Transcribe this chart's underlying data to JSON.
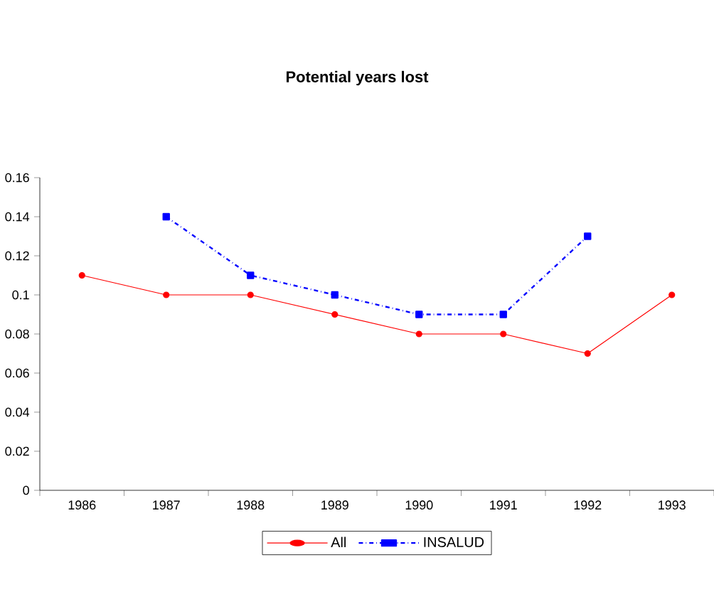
{
  "chart_data": {
    "type": "line",
    "title": "Potential years lost",
    "categories": [
      "1986",
      "1987",
      "1988",
      "1989",
      "1990",
      "1991",
      "1992",
      "1993"
    ],
    "series": [
      {
        "name": "All",
        "color": "#ff0000",
        "marker": "circle",
        "line_style": "solid",
        "values": [
          0.11,
          0.1,
          0.1,
          0.09,
          0.08,
          0.08,
          0.07,
          0.1
        ]
      },
      {
        "name": "INSALUD",
        "color": "#0000ff",
        "marker": "square",
        "line_style": "dashdot",
        "values": [
          null,
          0.14,
          0.11,
          0.1,
          0.09,
          0.09,
          0.13,
          null
        ]
      }
    ],
    "ylim": [
      0,
      0.16
    ],
    "yticks": [
      0,
      0.02,
      0.04,
      0.06,
      0.08,
      0.1,
      0.12,
      0.14,
      0.16
    ],
    "grid": false,
    "legend": "bottom"
  }
}
